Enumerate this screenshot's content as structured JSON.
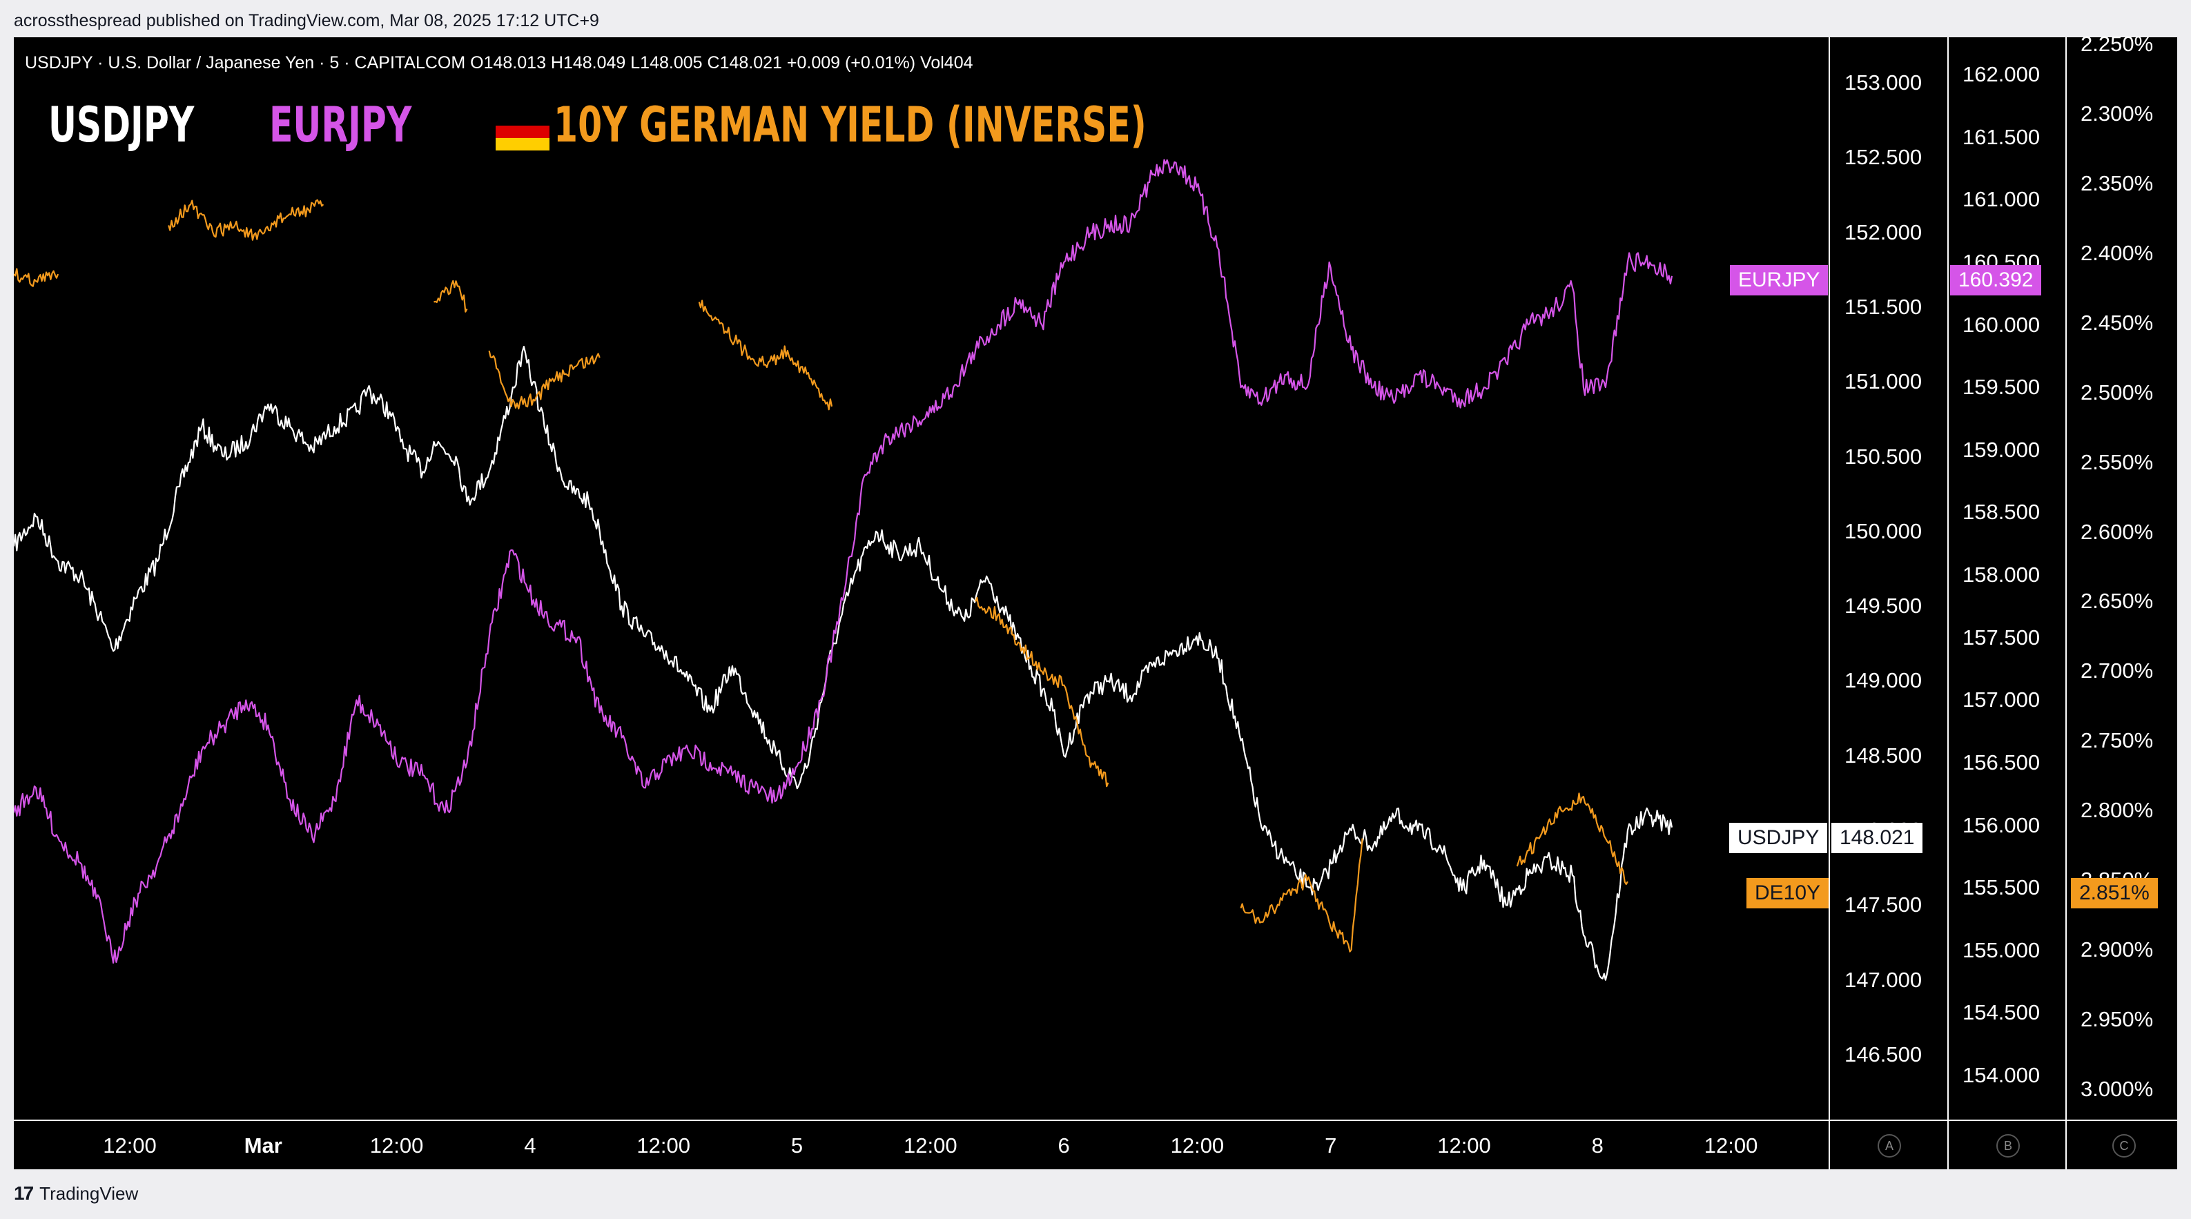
{
  "header": {
    "publisher": "acrossthespread published on TradingView.com, Mar 08, 2025 17:12 UTC+9"
  },
  "legend": {
    "text": "USDJPY · U.S. Dollar / Japanese Yen · 5 · CAPITALCOM  O148.013  H148.049  L148.005  C148.021  +0.009 (+0.01%)  Vol404"
  },
  "titles": {
    "usdjpy": "USDJPY",
    "eurjpy": "EURJPY",
    "de10y": "10Y GERMAN YIELD (INVERSE)"
  },
  "flag_colors": [
    "#000000",
    "#dd0000",
    "#ffce00"
  ],
  "footer": {
    "brand": "TradingView",
    "brand_mark": "17"
  },
  "scale_buttons": [
    "A",
    "B",
    "C"
  ],
  "colors": {
    "usdjpy": "#ffffff",
    "eurjpy": "#d555e8",
    "de10y": "#f39a1d",
    "background": "#000000"
  },
  "price_labels": {
    "eurjpy": {
      "name": "EURJPY",
      "value": "160.392"
    },
    "usdjpy": {
      "name": "USDJPY",
      "value": "148.021"
    },
    "de10y": {
      "name": "DE10Y",
      "value": "2.851%"
    }
  },
  "chart_data": {
    "type": "line",
    "x_ticks": [
      "12:00",
      "Mar",
      "12:00",
      "4",
      "12:00",
      "5",
      "12:00",
      "6",
      "12:00",
      "7",
      "12:00",
      "8",
      "12:00"
    ],
    "axes": {
      "A": {
        "series": "USDJPY",
        "ticks": [
          "153.000",
          "152.500",
          "152.000",
          "151.500",
          "151.000",
          "150.500",
          "150.000",
          "149.500",
          "149.000",
          "148.500",
          "148.000",
          "147.500",
          "147.000",
          "146.500"
        ],
        "range": [
          146.2,
          153.3
        ]
      },
      "B": {
        "series": "EURJPY",
        "ticks": [
          "162.000",
          "161.500",
          "161.000",
          "160.500",
          "160.000",
          "159.500",
          "159.000",
          "158.500",
          "158.000",
          "157.500",
          "157.000",
          "156.500",
          "156.000",
          "155.500",
          "155.000",
          "154.500",
          "154.000"
        ],
        "range": [
          153.8,
          162.4
        ]
      },
      "C": {
        "series": "DE10Y",
        "inverted": true,
        "ticks": [
          "2.250%",
          "2.300%",
          "2.350%",
          "2.400%",
          "2.450%",
          "2.500%",
          "2.550%",
          "2.600%",
          "2.650%",
          "2.700%",
          "2.750%",
          "2.800%",
          "2.850%",
          "2.900%",
          "2.950%",
          "3.000%"
        ],
        "range": [
          2.25,
          3.0
        ]
      }
    },
    "x_index_range": [
      0,
      150
    ],
    "series": [
      {
        "name": "USDJPY",
        "axis": "A",
        "color": "#ffffff",
        "points": [
          [
            0,
            149.9
          ],
          [
            2,
            150.1
          ],
          [
            4,
            149.8
          ],
          [
            6,
            149.7
          ],
          [
            8,
            149.4
          ],
          [
            9,
            149.2
          ],
          [
            11,
            149.55
          ],
          [
            13,
            149.8
          ],
          [
            15,
            150.3
          ],
          [
            17,
            150.7
          ],
          [
            19,
            150.5
          ],
          [
            21,
            150.6
          ],
          [
            23,
            150.85
          ],
          [
            25,
            150.7
          ],
          [
            27,
            150.55
          ],
          [
            29,
            150.7
          ],
          [
            31,
            150.8
          ],
          [
            32,
            150.95
          ],
          [
            34,
            150.8
          ],
          [
            35,
            150.6
          ],
          [
            37,
            150.4
          ],
          [
            38,
            150.6
          ],
          [
            40,
            150.5
          ],
          [
            41,
            150.2
          ],
          [
            43,
            150.4
          ],
          [
            45,
            150.9
          ],
          [
            46,
            151.2
          ],
          [
            47,
            151.0
          ],
          [
            48,
            150.7
          ],
          [
            50,
            150.3
          ],
          [
            52,
            150.2
          ],
          [
            53,
            150.0
          ],
          [
            55,
            149.5
          ],
          [
            57,
            149.3
          ],
          [
            59,
            149.2
          ],
          [
            61,
            149.0
          ],
          [
            63,
            148.8
          ],
          [
            65,
            149.1
          ],
          [
            67,
            148.8
          ],
          [
            69,
            148.5
          ],
          [
            71,
            148.3
          ],
          [
            72,
            148.5
          ],
          [
            74,
            149.2
          ],
          [
            76,
            149.7
          ],
          [
            78,
            150.0
          ],
          [
            80,
            149.85
          ],
          [
            82,
            149.9
          ],
          [
            84,
            149.6
          ],
          [
            86,
            149.4
          ],
          [
            88,
            149.7
          ],
          [
            90,
            149.4
          ],
          [
            92,
            149.1
          ],
          [
            94,
            148.8
          ],
          [
            95,
            148.5
          ],
          [
            97,
            148.9
          ],
          [
            99,
            149.0
          ],
          [
            101,
            148.9
          ],
          [
            103,
            149.1
          ],
          [
            105,
            149.2
          ],
          [
            107,
            149.3
          ],
          [
            109,
            149.15
          ],
          [
            111,
            148.6
          ],
          [
            113,
            148.0
          ],
          [
            114,
            147.9
          ],
          [
            116,
            147.7
          ],
          [
            118,
            147.6
          ],
          [
            120,
            147.9
          ],
          [
            121,
            148.0
          ],
          [
            123,
            147.9
          ],
          [
            125,
            148.1
          ],
          [
            127,
            148.0
          ],
          [
            129,
            147.9
          ],
          [
            131,
            147.6
          ],
          [
            133,
            147.8
          ],
          [
            135,
            147.5
          ],
          [
            137,
            147.7
          ],
          [
            139,
            147.8
          ],
          [
            141,
            147.7
          ],
          [
            142,
            147.3
          ],
          [
            144,
            147.0
          ],
          [
            146,
            148.0
          ],
          [
            148,
            148.1
          ],
          [
            150,
            148.02
          ]
        ]
      },
      {
        "name": "EURJPY",
        "axis": "B",
        "color": "#d555e8",
        "points": [
          [
            0,
            156.1
          ],
          [
            2,
            156.3
          ],
          [
            4,
            155.9
          ],
          [
            6,
            155.7
          ],
          [
            8,
            155.3
          ],
          [
            9,
            154.9
          ],
          [
            11,
            155.4
          ],
          [
            13,
            155.7
          ],
          [
            15,
            156.1
          ],
          [
            17,
            156.6
          ],
          [
            19,
            156.8
          ],
          [
            21,
            157.0
          ],
          [
            23,
            156.8
          ],
          [
            25,
            156.2
          ],
          [
            27,
            155.9
          ],
          [
            29,
            156.2
          ],
          [
            31,
            157.0
          ],
          [
            33,
            156.8
          ],
          [
            35,
            156.5
          ],
          [
            37,
            156.4
          ],
          [
            39,
            156.1
          ],
          [
            41,
            156.5
          ],
          [
            43,
            157.5
          ],
          [
            45,
            158.2
          ],
          [
            47,
            157.8
          ],
          [
            49,
            157.6
          ],
          [
            51,
            157.5
          ],
          [
            53,
            156.9
          ],
          [
            55,
            156.7
          ],
          [
            57,
            156.3
          ],
          [
            59,
            156.5
          ],
          [
            61,
            156.6
          ],
          [
            63,
            156.5
          ],
          [
            65,
            156.4
          ],
          [
            67,
            156.3
          ],
          [
            69,
            156.2
          ],
          [
            71,
            156.5
          ],
          [
            73,
            157.0
          ],
          [
            75,
            157.8
          ],
          [
            77,
            158.8
          ],
          [
            79,
            159.1
          ],
          [
            81,
            159.2
          ],
          [
            83,
            159.3
          ],
          [
            85,
            159.5
          ],
          [
            87,
            159.8
          ],
          [
            89,
            160.0
          ],
          [
            91,
            160.2
          ],
          [
            93,
            160.0
          ],
          [
            95,
            160.5
          ],
          [
            97,
            160.7
          ],
          [
            99,
            160.8
          ],
          [
            101,
            160.8
          ],
          [
            103,
            161.2
          ],
          [
            105,
            161.3
          ],
          [
            107,
            161.1
          ],
          [
            109,
            160.6
          ],
          [
            111,
            159.5
          ],
          [
            113,
            159.4
          ],
          [
            115,
            159.6
          ],
          [
            117,
            159.5
          ],
          [
            119,
            160.5
          ],
          [
            121,
            159.8
          ],
          [
            123,
            159.5
          ],
          [
            125,
            159.4
          ],
          [
            127,
            159.6
          ],
          [
            129,
            159.5
          ],
          [
            131,
            159.4
          ],
          [
            133,
            159.5
          ],
          [
            135,
            159.7
          ],
          [
            137,
            160.0
          ],
          [
            139,
            160.1
          ],
          [
            141,
            160.3
          ],
          [
            142,
            159.5
          ],
          [
            144,
            159.5
          ],
          [
            146,
            160.5
          ],
          [
            148,
            160.5
          ],
          [
            150,
            160.39
          ]
        ]
      },
      {
        "name": "DE10Y",
        "axis": "C",
        "color": "#f39a1d",
        "points": [
          [
            0,
            2.415
          ],
          [
            2,
            2.42
          ],
          [
            4,
            2.415
          ],
          [
            null,
            null
          ],
          [
            14,
            2.38
          ],
          [
            16,
            2.365
          ],
          [
            18,
            2.385
          ],
          [
            20,
            2.38
          ],
          [
            22,
            2.39
          ],
          [
            24,
            2.375
          ],
          [
            26,
            2.37
          ],
          [
            28,
            2.365
          ],
          [
            null,
            null
          ],
          [
            38,
            2.435
          ],
          [
            40,
            2.42
          ],
          [
            41,
            2.44
          ],
          [
            null,
            null
          ],
          [
            43,
            2.47
          ],
          [
            45,
            2.51
          ],
          [
            47,
            2.505
          ],
          [
            49,
            2.49
          ],
          [
            51,
            2.48
          ],
          [
            53,
            2.475
          ],
          [
            null,
            null
          ],
          [
            62,
            2.435
          ],
          [
            64,
            2.45
          ],
          [
            66,
            2.47
          ],
          [
            68,
            2.48
          ],
          [
            70,
            2.47
          ],
          [
            72,
            2.49
          ],
          [
            74,
            2.51
          ],
          [
            null,
            null
          ],
          [
            87,
            2.65
          ],
          [
            89,
            2.66
          ],
          [
            91,
            2.68
          ],
          [
            93,
            2.7
          ],
          [
            95,
            2.71
          ],
          [
            97,
            2.76
          ],
          [
            99,
            2.78
          ],
          [
            null,
            null
          ],
          [
            111,
            2.87
          ],
          [
            113,
            2.88
          ],
          [
            115,
            2.86
          ],
          [
            117,
            2.85
          ],
          [
            119,
            2.88
          ],
          [
            121,
            2.9
          ],
          [
            null,
            null
          ],
          [
            121,
            2.9
          ],
          [
            122,
            2.82
          ],
          [
            null,
            null
          ],
          [
            136,
            2.84
          ],
          [
            138,
            2.82
          ],
          [
            140,
            2.8
          ],
          [
            142,
            2.79
          ],
          [
            144,
            2.82
          ],
          [
            146,
            2.851
          ]
        ]
      }
    ]
  }
}
